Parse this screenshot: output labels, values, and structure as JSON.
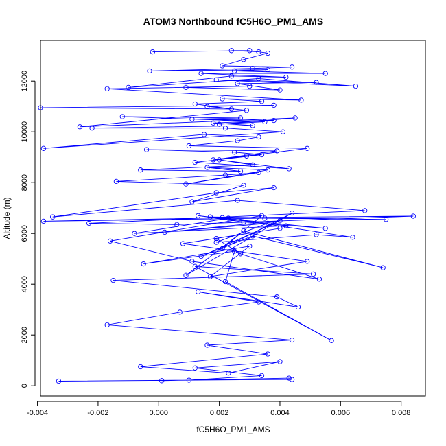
{
  "chart_data": {
    "type": "line",
    "title": "ATOM3 Northbound fC5H6O_PM1_AMS",
    "xlabel": "fC5H6O_PM1_AMS",
    "ylabel": "Altitude (m)",
    "xlim": [
      -0.0039,
      0.0088
    ],
    "ylim": [
      -400,
      13600
    ],
    "x_ticks": [
      -0.004,
      -0.002,
      0.0,
      0.002,
      0.004,
      0.006,
      0.008
    ],
    "x_tick_labels": [
      "-0.004",
      "-0.002",
      "0.000",
      "0.002",
      "0.004",
      "0.006",
      "0.008"
    ],
    "y_ticks": [
      0,
      2000,
      4000,
      6000,
      8000,
      10000,
      12000
    ],
    "y_tick_labels": [
      "0",
      "2000",
      "4000",
      "6000",
      "8000",
      "10000",
      "12000"
    ],
    "series_color": "#0000ff",
    "markers": "open-circle",
    "series": [
      {
        "x": [
          0.0001,
          0.0043,
          0.0044,
          -0.0033,
          0.001,
          0.0034,
          0.0012,
          0.004,
          0.0023,
          -0.0006,
          0.0036,
          0.0016,
          0.0044,
          -0.0017,
          0.0007,
          0.0033,
          0.0013,
          0.0046,
          0.0039,
          -0.0015,
          0.0051,
          0.0012,
          0.0057,
          0.0022,
          0.0025,
          -0.0005,
          0.003,
          0.0017,
          0.0049,
          0.0008,
          0.004,
          0.0019,
          0.0027,
          0.0053,
          0.0011,
          -0.0016,
          0.0034,
          0.0021,
          0.0044,
          0.0009,
          0.0028,
          0.0074,
          0.0031,
          0.0014,
          0.004,
          0.0002,
          0.0036,
          0.0019,
          0.0052,
          0.0064,
          0.0023,
          -0.0008,
          0.0042,
          0.0013,
          0.0028,
          0.0055,
          0.0017,
          0.0075,
          0.0035,
          -0.0038,
          0.0021,
          0.0084,
          0.0006,
          -0.0023,
          0.0068,
          0.0026,
          -0.0035,
          0.0019,
          0.0038,
          0.0011,
          0.0028,
          -0.0014,
          0.0022,
          0.0033,
          0.0009,
          0.0036,
          0.0016,
          0.0027,
          -0.0006,
          0.0031,
          0.002,
          0.0043,
          0.0012,
          0.0034,
          0.0025,
          -0.0004,
          0.0039,
          0.0018,
          0.0029,
          0.0049,
          0.001,
          0.0026,
          0.0033,
          0.0015,
          -0.0038,
          0.0041,
          0.0022,
          -0.0022,
          0.0031,
          0.0018,
          0.0038,
          0.0011,
          0.0027,
          -0.0012,
          0.0035,
          0.002,
          0.0045,
          -0.0026,
          0.0029,
          0.0016,
          0.0038,
          -0.0039,
          0.0024,
          0.0012,
          0.0034,
          0.0021,
          0.0047,
          -0.0017,
          0.003,
          0.0009,
          0.004,
          0.0026,
          0.0052,
          0.0019,
          0.0065,
          0.0033,
          -0.001,
          0.0024,
          0.0042,
          0.0014,
          0.0055,
          0.0025,
          0.0036,
          -0.0003,
          0.0031,
          0.0044,
          0.0021,
          0.0028,
          0.0036,
          0.0033,
          0.0024,
          0.003,
          -0.0002
        ],
        "y": [
          200,
          300,
          250,
          180,
          220,
          400,
          700,
          950,
          500,
          750,
          1250,
          1600,
          1800,
          2400,
          2900,
          3300,
          3700,
          3100,
          3500,
          4150,
          4400,
          4700,
          1780,
          4100,
          5300,
          4800,
          5500,
          4300,
          4900,
          5600,
          6200,
          5800,
          5200,
          4200,
          4900,
          5700,
          6700,
          5400,
          6800,
          4350,
          6100,
          4650,
          5900,
          5100,
          6500,
          6050,
          6400,
          5650,
          5950,
          5850,
          6600,
          6000,
          6300,
          6700,
          6450,
          6200,
          6650,
          6550,
          6600,
          6480,
          6620,
          6680,
          6350,
          6400,
          6900,
          7300,
          6650,
          7600,
          7800,
          7250,
          7900,
          8050,
          8300,
          8400,
          7950,
          8500,
          8600,
          8450,
          8500,
          8700,
          8900,
          8550,
          8800,
          9100,
          9200,
          9300,
          9250,
          8900,
          9050,
          9350,
          9450,
          9650,
          9800,
          9900,
          9350,
          10000,
          10150,
          10150,
          10250,
          10350,
          10450,
          10500,
          10550,
          10600,
          10400,
          10300,
          10550,
          10200,
          10850,
          11000,
          11050,
          10950,
          10900,
          11100,
          11200,
          11300,
          11250,
          11700,
          11800,
          11750,
          11650,
          11900,
          11950,
          12050,
          11800,
          12100,
          11750,
          12200,
          12150,
          12300,
          12300,
          12400,
          12450,
          12400,
          12500,
          12550,
          12600,
          12850,
          13100,
          13150,
          13200,
          13200,
          13150
        ]
      }
    ]
  }
}
